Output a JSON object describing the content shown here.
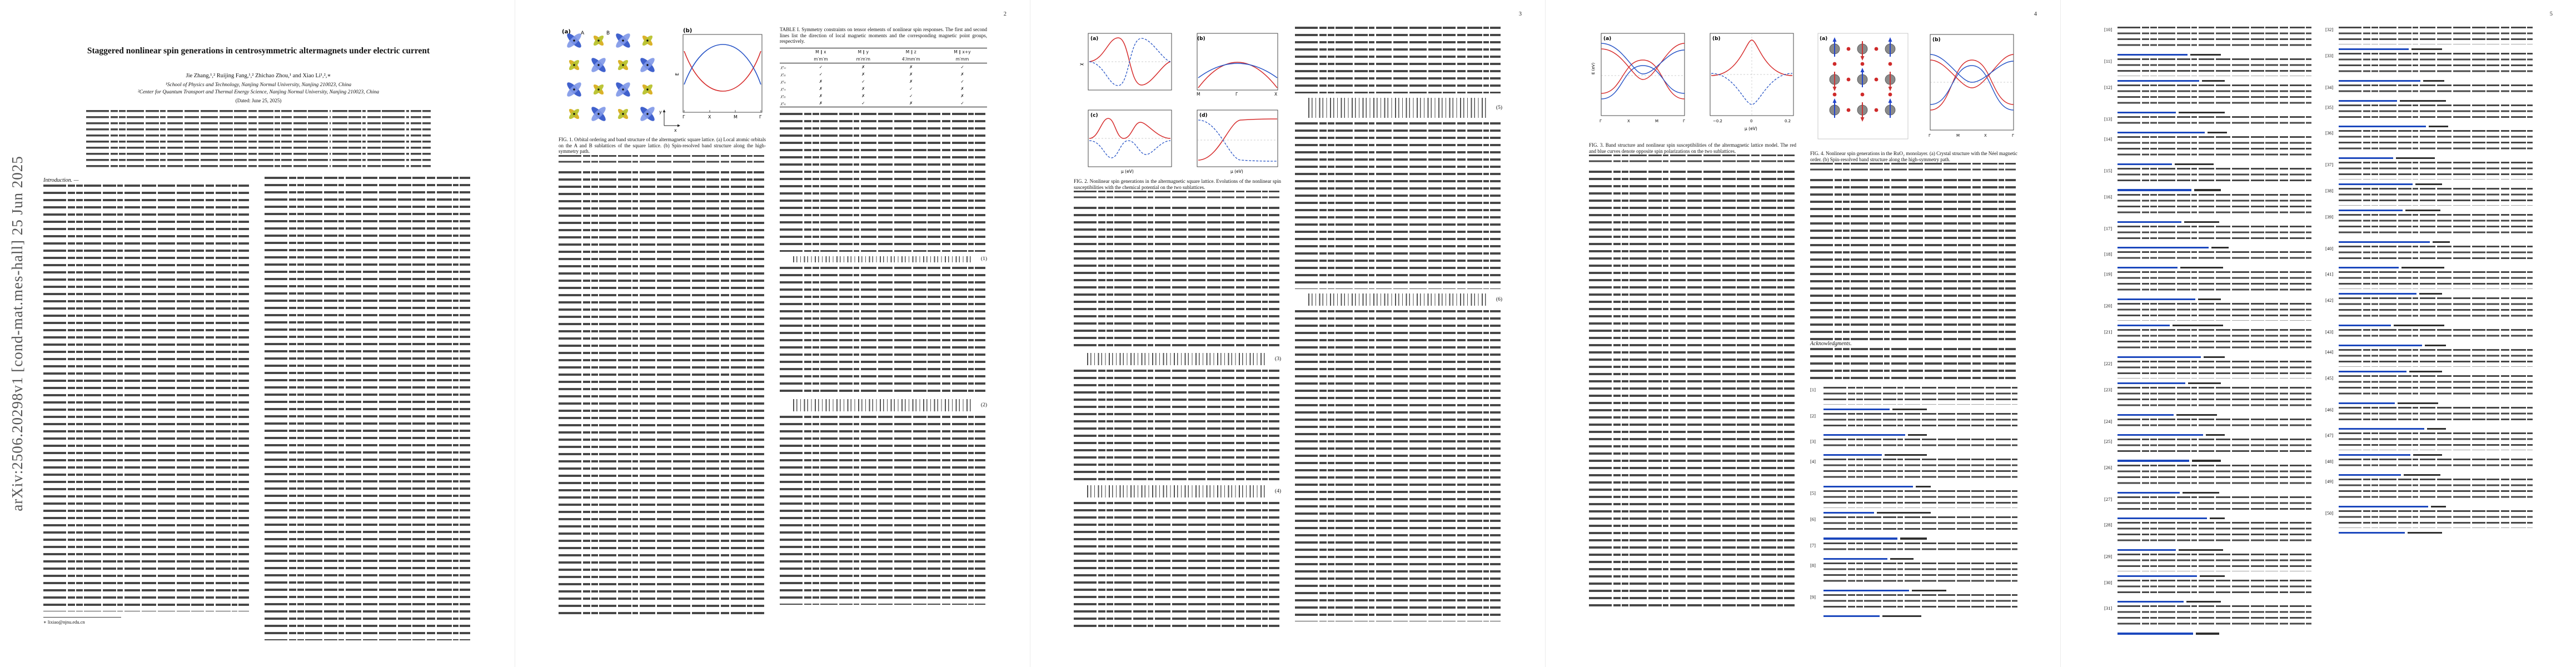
{
  "watermark": {
    "text": "arXiv:2506.20298v1 [cond-mat.mes-hall] 25 Jun 2025"
  },
  "pages": {
    "p2": "2",
    "p3": "3",
    "p4": "4",
    "p5": "5"
  },
  "paper": {
    "title": "Staggered nonlinear spin generations in centrosymmetric altermagnets under electric current",
    "authors": "Jie Zhang,¹,² Ruijing Fang,¹,² Zhichao Zhou,¹ and Xiao Li¹,²,∗",
    "affiliation1": "¹School of Physics and Technology, Nanjing Normal University, Nanjing 210023, China",
    "affiliation2": "²Center for Quantum Transport and Thermal Energy Science, Nanjing Normal University, Nanjing 210023, China",
    "dated": "(Dated: June 25, 2025)",
    "footnote": "∗ lixiao@njnu.edu.cn"
  },
  "sections": {
    "introduction": "Introduction. —",
    "acknowledgments": "Acknowledgments."
  },
  "figures": {
    "fig1": {
      "caption": "FIG. 1. Orbital ordering and band structure of the altermagnetic square lattice. (a) Local atomic orbitals on the A and B sublattices of the square lattice. (b) Spin-resolved band structure along the high-symmetry path.",
      "panel_a": "(a)",
      "panel_b": "(b)",
      "site_a": "A",
      "site_b": "B",
      "axis_x": "x",
      "axis_y": "y",
      "e_label": "E",
      "kticks": [
        "Γ",
        "X",
        "M",
        "Γ"
      ]
    },
    "fig2": {
      "caption": "FIG. 2. Nonlinear spin generations in the altermagnetic square lattice. Evolutions of the nonlinear spin susceptibilities with the chemical potential on the two sublattices.",
      "panels": [
        "(a)",
        "(b)",
        "(c)",
        "(d)"
      ],
      "kticks": [
        "M",
        "Γ",
        "X"
      ],
      "xlabel": "μ (eV)",
      "ylabel": "χ"
    },
    "fig3": {
      "caption": "FIG. 3. Band structure and nonlinear spin susceptibilities of the altermagnetic lattice model. The red and blue curves denote opposite spin polarizations on the two sublattices.",
      "panels": [
        "(a)",
        "(b)"
      ],
      "kticks": [
        "Γ",
        "X",
        "M",
        "Γ"
      ],
      "xticks": [
        "−0.2",
        "0",
        "0.2"
      ],
      "xlabel": "μ (eV)",
      "ylabel": "E (eV)"
    },
    "fig4": {
      "caption": "FIG. 4. Nonlinear spin generations in the RuO₂ monolayer. (a) Crystal structure with the Néel magnetic order. (b) Spin-resolved band structure along the high-symmetry path.",
      "panels": [
        "(a)",
        "(b)"
      ],
      "kticks": [
        "Γ",
        "M",
        "X",
        "Γ"
      ]
    }
  },
  "table1": {
    "caption": "TABLE I. Symmetry constraints on tensor elements of nonlinear spin responses. The first and second lines list the direction of local magnetic moments and the corresponding magnetic point groups, respectively.",
    "moment_row": [
      "",
      "M ∥ x",
      "M ∥ y",
      "M ∥ z",
      "M ∥ x+y"
    ],
    "group_row": [
      "",
      "m′m′m",
      "m′m′m",
      "4′/mm′m",
      "m′mm"
    ],
    "rows": [
      {
        "label": "χˣₓₓ",
        "cells": [
          "✓",
          "✗",
          "✗",
          "✓"
        ]
      },
      {
        "label": "χˣᵧᵧ",
        "cells": [
          "✓",
          "✗",
          "✗",
          "✗"
        ]
      },
      {
        "label": "χʸₓᵧ",
        "cells": [
          "✗",
          "✓",
          "✗",
          "✓"
        ]
      },
      {
        "label": "χᶻₓₓ",
        "cells": [
          "✗",
          "✗",
          "✓",
          "✗"
        ]
      },
      {
        "label": "χᶻᵧᵧ",
        "cells": [
          "✗",
          "✗",
          "✓",
          "✗"
        ]
      },
      {
        "label": "χᶻₓᵧ",
        "cells": [
          "✗",
          "✓",
          "✗",
          "✓"
        ]
      }
    ]
  },
  "equations": {
    "e1": "(1)",
    "e2": "(2)",
    "e3": "(3)",
    "e4": "(4)",
    "e5": "(5)",
    "e6": "(6)"
  },
  "references": {
    "p4": [
      {
        "n": "[1]",
        "lines": 3,
        "link": 34,
        "tail": 18
      },
      {
        "n": "[2]",
        "lines": 3,
        "link": 42,
        "tail": 10
      },
      {
        "n": "[3]",
        "lines": 2,
        "link": 30,
        "tail": 22
      },
      {
        "n": "[4]",
        "lines": 4,
        "link": 46,
        "tail": 8
      },
      {
        "n": "[5]",
        "lines": 3,
        "link": 26,
        "tail": 28
      },
      {
        "n": "[6]",
        "lines": 3,
        "link": 38,
        "tail": 14
      },
      {
        "n": "[7]",
        "lines": 2,
        "link": 33,
        "tail": 12
      },
      {
        "n": "[8]",
        "lines": 4,
        "link": 44,
        "tail": 18
      },
      {
        "n": "[9]",
        "lines": 3,
        "link": 29,
        "tail": 20
      }
    ],
    "p5l": [
      {
        "n": "[10]",
        "lines": 4,
        "link": 36,
        "tail": 16
      },
      {
        "n": "[11]",
        "lines": 3,
        "link": 42,
        "tail": 12
      },
      {
        "n": "[12]",
        "lines": 4,
        "link": 30,
        "tail": 24
      },
      {
        "n": "[13]",
        "lines": 2,
        "link": 45,
        "tail": 10
      },
      {
        "n": "[14]",
        "lines": 4,
        "link": 28,
        "tail": 20
      },
      {
        "n": "[15]",
        "lines": 3,
        "link": 38,
        "tail": 14
      },
      {
        "n": "[16]",
        "lines": 4,
        "link": 33,
        "tail": 18
      },
      {
        "n": "[17]",
        "lines": 3,
        "link": 47,
        "tail": 9
      },
      {
        "n": "[18]",
        "lines": 2,
        "link": 31,
        "tail": 22
      },
      {
        "n": "[19]",
        "lines": 4,
        "link": 40,
        "tail": 12
      },
      {
        "n": "[20]",
        "lines": 3,
        "link": 27,
        "tail": 26
      },
      {
        "n": "[21]",
        "lines": 4,
        "link": 43,
        "tail": 11
      },
      {
        "n": "[22]",
        "lines": 3,
        "link": 35,
        "tail": 17
      },
      {
        "n": "[23]",
        "lines": 4,
        "link": 29,
        "tail": 21
      },
      {
        "n": "[24]",
        "lines": 2,
        "link": 44,
        "tail": 10
      },
      {
        "n": "[25]",
        "lines": 3,
        "link": 37,
        "tail": 15
      },
      {
        "n": "[26]",
        "lines": 4,
        "link": 32,
        "tail": 19
      },
      {
        "n": "[27]",
        "lines": 3,
        "link": 46,
        "tail": 8
      },
      {
        "n": "[28]",
        "lines": 4,
        "link": 30,
        "tail": 23
      },
      {
        "n": "[29]",
        "lines": 3,
        "link": 41,
        "tail": 13
      },
      {
        "n": "[30]",
        "lines": 3,
        "link": 34,
        "tail": 18
      },
      {
        "n": "[31]",
        "lines": 4,
        "link": 39,
        "tail": 12
      }
    ],
    "p5r": [
      {
        "n": "[32]",
        "lines": 3,
        "link": 36,
        "tail": 16
      },
      {
        "n": "[33]",
        "lines": 4,
        "link": 42,
        "tail": 11
      },
      {
        "n": "[34]",
        "lines": 2,
        "link": 30,
        "tail": 24
      },
      {
        "n": "[35]",
        "lines": 3,
        "link": 45,
        "tail": 10
      },
      {
        "n": "[36]",
        "lines": 4,
        "link": 28,
        "tail": 20
      },
      {
        "n": "[37]",
        "lines": 3,
        "link": 38,
        "tail": 14
      },
      {
        "n": "[38]",
        "lines": 3,
        "link": 33,
        "tail": 18
      },
      {
        "n": "[39]",
        "lines": 4,
        "link": 47,
        "tail": 9
      },
      {
        "n": "[40]",
        "lines": 3,
        "link": 31,
        "tail": 22
      },
      {
        "n": "[41]",
        "lines": 3,
        "link": 40,
        "tail": 12
      },
      {
        "n": "[42]",
        "lines": 4,
        "link": 27,
        "tail": 26
      },
      {
        "n": "[43]",
        "lines": 2,
        "link": 43,
        "tail": 11
      },
      {
        "n": "[44]",
        "lines": 3,
        "link": 35,
        "tail": 17
      },
      {
        "n": "[45]",
        "lines": 4,
        "link": 29,
        "tail": 21
      },
      {
        "n": "[46]",
        "lines": 3,
        "link": 44,
        "tail": 10
      },
      {
        "n": "[47]",
        "lines": 3,
        "link": 37,
        "tail": 15
      },
      {
        "n": "[48]",
        "lines": 2,
        "link": 32,
        "tail": 19
      },
      {
        "n": "[49]",
        "lines": 4,
        "link": 46,
        "tail": 8
      },
      {
        "n": "[50]",
        "lines": 3,
        "link": 34,
        "tail": 18
      }
    ]
  }
}
